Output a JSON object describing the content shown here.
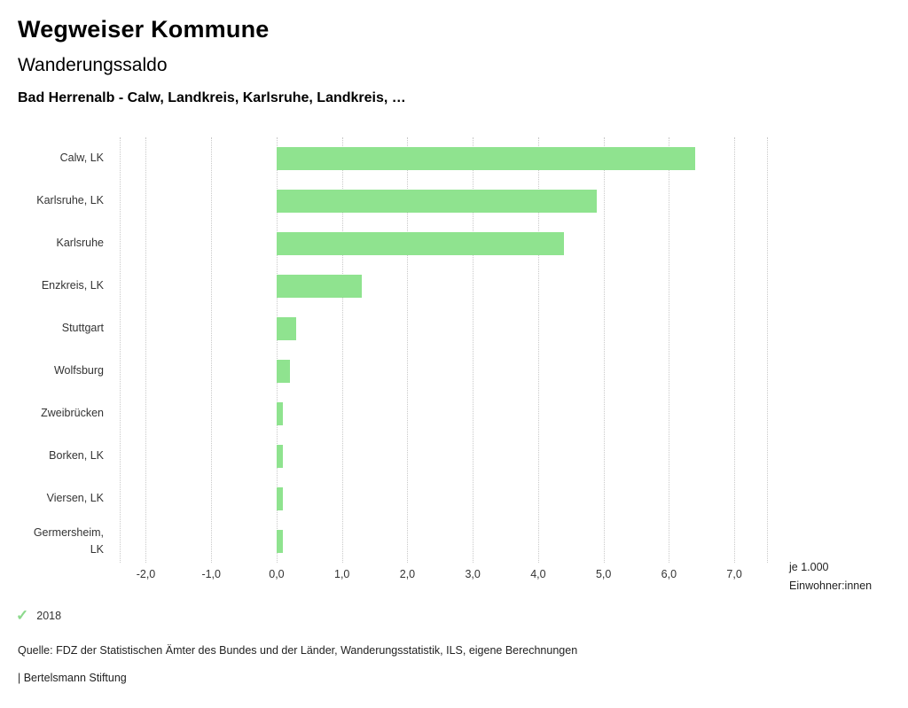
{
  "header": {
    "title": "Wegweiser Kommune",
    "subtitle": "Wanderungssaldo",
    "breadcrumb": "Bad Herrenalb - Calw, Landkreis, Karlsruhe, Landkreis, …"
  },
  "chart_data": {
    "type": "bar",
    "orientation": "horizontal",
    "title": "Wanderungssaldo",
    "categories": [
      "Calw, LK",
      "Karlsruhe, LK",
      "Karlsruhe",
      "Enzkreis, LK",
      "Stuttgart",
      "Wolfsburg",
      "Zweibrücken",
      "Borken, LK",
      "Viersen, LK",
      "Germersheim, LK"
    ],
    "values": [
      6.4,
      4.9,
      4.4,
      1.3,
      0.3,
      0.2,
      0.1,
      0.1,
      0.1,
      0.1
    ],
    "series_name": "2018",
    "bar_color": "#8fe38f",
    "xlabel": "je 1.000 Einwohner:innen",
    "xlabel_lines": [
      "je 1.000",
      "Einwohner:innen"
    ],
    "xlim": [
      -2.4,
      7.5
    ],
    "ticks": [
      -2,
      -1,
      0,
      1,
      2,
      3,
      4,
      5,
      6,
      7
    ],
    "tick_labels": [
      "-2,0",
      "-1,0",
      "0,0",
      "1,0",
      "2,0",
      "3,0",
      "4,0",
      "5,0",
      "6,0",
      "7,0"
    ],
    "grid": "dotted-vertical",
    "legend_position": "bottom-left"
  },
  "legend": {
    "items": [
      {
        "label": "2018",
        "checked": true
      }
    ]
  },
  "footer": {
    "source": "Quelle: FDZ der Statistischen Ämter des Bundes und der Länder, Wanderungsstatistik, ILS, eigene Berechnungen",
    "brand": "| Bertelsmann Stiftung"
  }
}
